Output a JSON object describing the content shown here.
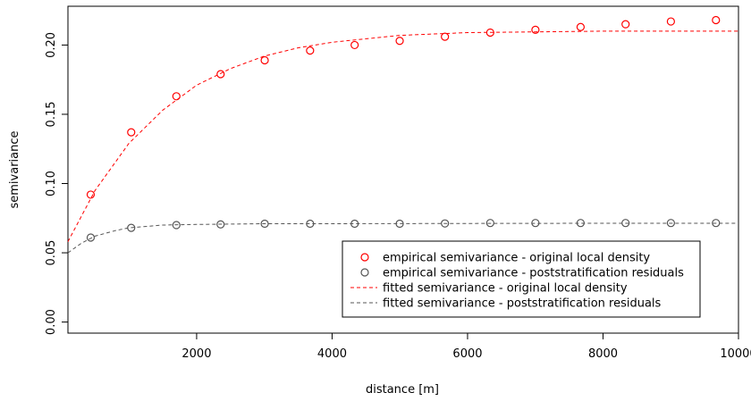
{
  "chart_data": {
    "type": "scatter",
    "title": "",
    "xlabel": "distance [m]",
    "ylabel": "semivariance",
    "xlim": [
      100,
      10000
    ],
    "ylim": [
      -0.008,
      0.228
    ],
    "x_ticks": [
      2000,
      4000,
      6000,
      8000,
      10000
    ],
    "x_tick_labels": [
      "2000",
      "4000",
      "6000",
      "8000",
      "10000"
    ],
    "y_ticks": [
      0.0,
      0.05,
      0.1,
      0.15,
      0.2
    ],
    "y_tick_labels": [
      "0.00",
      "0.05",
      "0.10",
      "0.15",
      "0.20"
    ],
    "grid": false,
    "legend_position": "bottom-right",
    "series": [
      {
        "name": "empirical semivariance - original local density",
        "kind": "points",
        "color": "#ff0000",
        "x": [
          436,
          1034,
          1701,
          2354,
          3005,
          3675,
          4333,
          4998,
          5666,
          6335,
          7002,
          7669,
          8333,
          9002,
          9667
        ],
        "y": [
          0.092,
          0.137,
          0.163,
          0.179,
          0.189,
          0.196,
          0.2,
          0.203,
          0.206,
          0.209,
          0.211,
          0.213,
          0.215,
          0.217,
          0.218
        ]
      },
      {
        "name": "empirical semivariance - poststratification residuals",
        "kind": "points",
        "color": "#555555",
        "x": [
          436,
          1034,
          1701,
          2354,
          3005,
          3675,
          4333,
          4998,
          5666,
          6335,
          7002,
          7669,
          8333,
          9002,
          9667
        ],
        "y": [
          0.061,
          0.068,
          0.07,
          0.0705,
          0.071,
          0.071,
          0.071,
          0.071,
          0.0712,
          0.0715,
          0.0715,
          0.0715,
          0.0715,
          0.0715,
          0.0715
        ]
      },
      {
        "name": "fitted semivariance - original local density",
        "kind": "line",
        "dash": "dashed",
        "color": "#ff0000",
        "x": [
          100,
          500,
          1000,
          1500,
          2000,
          2500,
          3000,
          3500,
          4000,
          5000,
          6000,
          7000,
          8000,
          9000,
          10000
        ],
        "y": [
          0.058,
          0.095,
          0.129,
          0.153,
          0.171,
          0.183,
          0.192,
          0.198,
          0.202,
          0.207,
          0.209,
          0.2095,
          0.21,
          0.21,
          0.21
        ]
      },
      {
        "name": "fitted semivariance - poststratification residuals",
        "kind": "line",
        "dash": "dashed",
        "color": "#555555",
        "x": [
          100,
          300,
          500,
          800,
          1000,
          1500,
          2000,
          3000,
          4000,
          6000,
          8000,
          10000
        ],
        "y": [
          0.05,
          0.057,
          0.062,
          0.066,
          0.068,
          0.07,
          0.0705,
          0.071,
          0.071,
          0.0712,
          0.0713,
          0.0713
        ]
      }
    ]
  }
}
